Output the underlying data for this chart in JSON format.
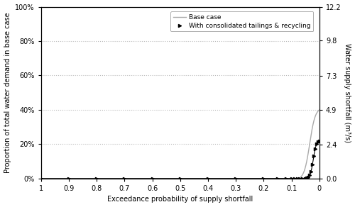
{
  "title": "",
  "xlabel": "Exceedance probability of supply shortfall",
  "ylabel_left": "Proportion of total water demand in base case",
  "ylabel_right": "Water supply shortfall (m³/s)",
  "legend": [
    "Base case",
    "With consolidated tailings & recycling"
  ],
  "xlim": [
    1,
    0
  ],
  "ylim_left": [
    0,
    1.0
  ],
  "ylim_right": [
    0.0,
    12.2
  ],
  "xticks": [
    1,
    0.9,
    0.8,
    0.7,
    0.6,
    0.5,
    0.4,
    0.3,
    0.2,
    0.1,
    0
  ],
  "yticks_left": [
    0.0,
    0.2,
    0.4,
    0.6,
    0.8,
    1.0
  ],
  "ytick_labels_left": [
    "0%",
    "20%",
    "40%",
    "60%",
    "80%",
    "100%"
  ],
  "yticks_right": [
    0.0,
    2.4,
    4.9,
    7.3,
    9.8,
    12.2
  ],
  "line_color_base": "#aaaaaa",
  "line_color_tailings": "#000000",
  "marker_tailings": ">",
  "grid_color": "#bbbbbb",
  "background_color": "#ffffff"
}
